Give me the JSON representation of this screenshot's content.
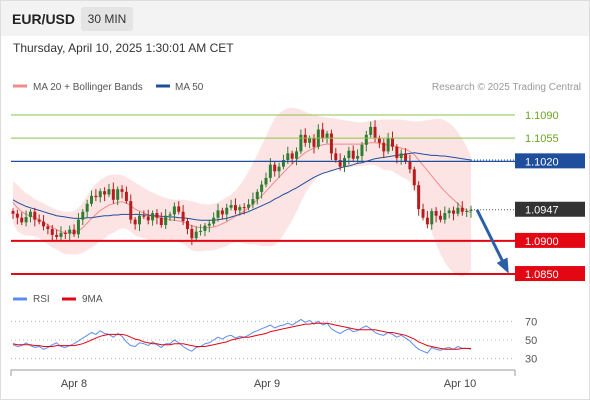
{
  "header": {
    "pair": "EUR/USD",
    "timeframe": "30 MIN",
    "timestamp": "Thursday, April 10, 2025 1:30:01 AM CET"
  },
  "legend": {
    "ma20": "MA 20 + Bollinger Bands",
    "ma50": "MA 50",
    "research": "Research © 2025 Trading Central",
    "rsi": "RSI",
    "ma9": "9MA"
  },
  "colors": {
    "ma20": "#f28b8b",
    "ma50": "#1f4e9c",
    "bb_fill": "#fde4e4",
    "up": "#2e7d32",
    "down": "#b71c1c",
    "resistance": "#8bc34a",
    "pivot": "#1f4e9c",
    "support": "#e30613",
    "last": "#333333",
    "rsi": "#5b8def",
    "rsi_ma": "#e30613",
    "arrow": "#2b5fa8"
  },
  "chart_data": [
    {
      "type": "candlestick",
      "ylim": [
        1.0838,
        1.1105
      ],
      "x_ticks": [
        "Apr 8",
        "Apr 9",
        "Apr 10"
      ],
      "levels": [
        {
          "value": 1.109,
          "label": "1.1090",
          "kind": "resistance"
        },
        {
          "value": 1.1055,
          "label": "1.1055",
          "kind": "resistance"
        },
        {
          "value": 1.102,
          "label": "1.1020",
          "kind": "pivot"
        },
        {
          "value": 1.0947,
          "label": "1.0947",
          "kind": "last"
        },
        {
          "value": 1.09,
          "label": "1.0900",
          "kind": "support"
        },
        {
          "value": 1.085,
          "label": "1.0850",
          "kind": "support"
        }
      ],
      "close": [
        1.0941,
        1.0935,
        1.0928,
        1.0936,
        1.0944,
        1.0932,
        1.0929,
        1.0922,
        1.0918,
        1.0909,
        1.0906,
        1.0912,
        1.0911,
        1.0917,
        1.091,
        1.0932,
        1.0944,
        1.0956,
        1.0968,
        1.0966,
        1.0975,
        1.097,
        1.0978,
        1.0962,
        1.0978,
        1.0974,
        1.096,
        1.0932,
        1.0925,
        1.0938,
        1.0937,
        1.0931,
        1.0942,
        1.0935,
        1.0924,
        1.0938,
        1.094,
        1.0952,
        1.0944,
        1.093,
        1.0918,
        1.0904,
        1.0914,
        1.0915,
        1.0923,
        1.0926,
        1.0935,
        1.0946,
        1.094,
        1.095,
        1.0954,
        1.0946,
        1.0951,
        1.095,
        1.0955,
        1.0963,
        1.0974,
        1.0985,
        1.0995,
        1.1015,
        1.1005,
        1.1012,
        1.1022,
        1.1032,
        1.1024,
        1.1035,
        1.106,
        1.1048,
        1.1055,
        1.1042,
        1.1068,
        1.1055,
        1.1062,
        1.1032,
        1.1022,
        1.1012,
        1.1025,
        1.1036,
        1.1024,
        1.1028,
        1.1045,
        1.106,
        1.1072,
        1.1055,
        1.1048,
        1.1035,
        1.1055,
        1.1042,
        1.1025,
        1.1032,
        1.102,
        1.1008,
        1.0984,
        1.0948,
        1.0935,
        1.0925,
        1.0945,
        1.0938,
        1.0932,
        1.0942,
        1.0946,
        1.0941,
        1.095,
        1.0944,
        1.0945,
        1.0947
      ],
      "ma20": [
        1.0958,
        1.095,
        1.0944,
        1.094,
        1.0938,
        1.0935,
        1.0932,
        1.0928,
        1.0924,
        1.092,
        1.0917,
        1.0914,
        1.0912,
        1.0912,
        1.0912,
        1.0915,
        1.092,
        1.0927,
        1.0934,
        1.094,
        1.0946,
        1.095,
        1.0954,
        1.0956,
        1.0958,
        1.0959,
        1.0957,
        1.0953,
        1.0948,
        1.0945,
        1.0942,
        1.0939,
        1.0937,
        1.0936,
        1.0934,
        1.0933,
        1.0932,
        1.0931,
        1.093,
        1.0929,
        1.0926,
        1.0923,
        1.0921,
        1.092,
        1.092,
        1.092,
        1.0921,
        1.0923,
        1.0926,
        1.0929,
        1.0933,
        1.0937,
        1.0941,
        1.0945,
        1.095,
        1.0956,
        1.0962,
        1.0968,
        1.0975,
        1.0982,
        1.0989,
        1.0996,
        1.1003,
        1.101,
        1.1016,
        1.1022,
        1.1028,
        1.1033,
        1.1037,
        1.104,
        1.1043,
        1.1045,
        1.1046,
        1.1046,
        1.1046,
        1.1046,
        1.1046,
        1.1046,
        1.1046,
        1.1046,
        1.1046,
        1.1047,
        1.1048,
        1.1048,
        1.1047,
        1.1045,
        1.1045,
        1.1044,
        1.1042,
        1.104,
        1.1038,
        1.1035,
        1.103,
        1.1022,
        1.1014,
        1.1006,
        1.0998,
        1.099,
        1.0982,
        1.0975,
        1.0968,
        1.0962,
        1.0956,
        1.095,
        1.0946,
        1.0942
      ],
      "bb_upper": [
        1.099,
        1.0985,
        1.0978,
        1.0972,
        1.0968,
        1.0963,
        1.096,
        1.0957,
        1.0953,
        1.095,
        1.0947,
        1.0945,
        1.0944,
        1.0944,
        1.0945,
        1.095,
        1.0958,
        1.0968,
        1.0978,
        1.0986,
        1.0992,
        1.0996,
        1.0999,
        1.1,
        1.1,
        1.0999,
        1.0996,
        1.0992,
        1.0988,
        1.0984,
        1.098,
        1.0976,
        1.0973,
        1.097,
        1.0967,
        1.0965,
        1.0963,
        1.0962,
        1.0962,
        1.0962,
        1.0961,
        1.096,
        1.0958,
        1.0956,
        1.0955,
        1.0955,
        1.0956,
        1.0958,
        1.0962,
        1.0966,
        1.097,
        1.0976,
        1.0984,
        1.0994,
        1.1005,
        1.1017,
        1.103,
        1.1044,
        1.1058,
        1.1072,
        1.1085,
        1.1092,
        1.1097,
        1.11,
        1.1101,
        1.11,
        1.1098,
        1.1095,
        1.1092,
        1.109,
        1.1088,
        1.1087,
        1.1086,
        1.1085,
        1.1084,
        1.1083,
        1.1082,
        1.1081,
        1.108,
        1.1079,
        1.1079,
        1.108,
        1.1081,
        1.1082,
        1.1083,
        1.1083,
        1.1083,
        1.1083,
        1.1083,
        1.1083,
        1.1082,
        1.1081,
        1.108,
        1.108,
        1.1081,
        1.1082,
        1.1083,
        1.1084,
        1.1084,
        1.1082,
        1.1078,
        1.1072,
        1.1064,
        1.1054,
        1.1042,
        1.1028
      ],
      "bb_lower": [
        1.0926,
        1.0915,
        1.091,
        1.0908,
        1.0908,
        1.0907,
        1.0904,
        1.0899,
        1.0895,
        1.089,
        1.0887,
        1.0883,
        1.088,
        1.088,
        1.0879,
        1.088,
        1.0882,
        1.0886,
        1.089,
        1.0894,
        1.09,
        1.0904,
        1.0909,
        1.0912,
        1.0916,
        1.0919,
        1.0918,
        1.0914,
        1.0908,
        1.0906,
        1.0904,
        1.0902,
        1.0901,
        1.0902,
        1.0901,
        1.0901,
        1.0901,
        1.09,
        1.0898,
        1.0896,
        1.0891,
        1.0886,
        1.0884,
        1.0884,
        1.0885,
        1.0885,
        1.0886,
        1.0888,
        1.089,
        1.0892,
        1.0896,
        1.0898,
        1.0898,
        1.0896,
        1.0895,
        1.0895,
        1.0894,
        1.0892,
        1.0892,
        1.0892,
        1.0893,
        1.09,
        1.0909,
        1.092,
        1.0931,
        1.0944,
        1.0958,
        1.0971,
        1.0982,
        1.099,
        1.0998,
        1.1003,
        1.1006,
        1.1007,
        1.1008,
        1.1009,
        1.101,
        1.1011,
        1.1012,
        1.1013,
        1.1013,
        1.1014,
        1.1015,
        1.1014,
        1.1011,
        1.1007,
        1.1007,
        1.1005,
        1.1001,
        1.0997,
        1.0994,
        1.0989,
        1.098,
        1.0964,
        1.0947,
        1.093,
        1.0913,
        1.0896,
        1.088,
        1.0868,
        1.0858,
        1.0852,
        1.0848,
        1.0846,
        1.085,
        1.0856
      ],
      "ma50": [
        1.0962,
        1.0958,
        1.0955,
        1.0952,
        1.095,
        1.0948,
        1.0946,
        1.0944,
        1.0942,
        1.094,
        1.0938,
        1.0937,
        1.0936,
        1.0935,
        1.0934,
        1.0934,
        1.0934,
        1.0935,
        1.0935,
        1.0936,
        1.0937,
        1.0938,
        1.0938,
        1.0939,
        1.0939,
        1.094,
        1.094,
        1.094,
        1.094,
        1.094,
        1.0939,
        1.0939,
        1.0938,
        1.0938,
        1.0937,
        1.0937,
        1.0936,
        1.0936,
        1.0935,
        1.0935,
        1.0934,
        1.0933,
        1.0932,
        1.0931,
        1.0931,
        1.0931,
        1.0931,
        1.0932,
        1.0933,
        1.0934,
        1.0936,
        1.0938,
        1.094,
        1.0942,
        1.0944,
        1.0947,
        1.095,
        1.0953,
        1.0956,
        1.0959,
        1.0963,
        1.0966,
        1.097,
        1.0973,
        1.0977,
        1.098,
        1.0984,
        1.0988,
        1.0992,
        1.0996,
        1.0999,
        1.1002,
        1.1004,
        1.1006,
        1.1008,
        1.101,
        1.1012,
        1.1013,
        1.1015,
        1.1017,
        1.1018,
        1.102,
        1.1022,
        1.1024,
        1.1025,
        1.1026,
        1.1027,
        1.1028,
        1.1029,
        1.103,
        1.1031,
        1.1032,
        1.1033,
        1.1032,
        1.1031,
        1.103,
        1.1029,
        1.1029,
        1.1028,
        1.1028,
        1.1027,
        1.1026,
        1.1025,
        1.1024,
        1.1023,
        1.1022
      ]
    },
    {
      "type": "line",
      "name": "RSI",
      "ylim": [
        20,
        80
      ],
      "y_ticks": [
        70,
        50,
        30
      ],
      "series": [
        {
          "name": "RSI",
          "values": [
            45,
            43,
            44,
            47,
            44,
            42,
            43,
            40,
            42,
            45,
            47,
            43,
            42,
            44,
            46,
            49,
            52,
            55,
            58,
            56,
            60,
            57,
            56,
            53,
            57,
            54,
            48,
            44,
            43,
            47,
            46,
            44,
            48,
            45,
            42,
            46,
            46,
            50,
            47,
            43,
            40,
            38,
            42,
            43,
            46,
            47,
            50,
            53,
            51,
            54,
            55,
            52,
            54,
            53,
            55,
            58,
            60,
            62,
            64,
            66,
            63,
            65,
            66,
            68,
            66,
            69,
            72,
            69,
            71,
            67,
            70,
            66,
            68,
            62,
            59,
            57,
            60,
            62,
            59,
            60,
            63,
            65,
            62,
            58,
            56,
            55,
            58,
            56,
            53,
            55,
            52,
            49,
            44,
            40,
            38,
            36,
            42,
            40,
            39,
            41,
            42,
            40,
            43,
            41,
            41,
            40
          ]
        },
        {
          "name": "9MA",
          "values": [
            46,
            45,
            45,
            45,
            45,
            44,
            44,
            43,
            43,
            43,
            44,
            44,
            44,
            44,
            44,
            45,
            46,
            48,
            50,
            52,
            54,
            55,
            56,
            56,
            56,
            56,
            55,
            53,
            51,
            50,
            48,
            47,
            46,
            46,
            45,
            45,
            45,
            46,
            46,
            46,
            45,
            44,
            43,
            43,
            43,
            44,
            45,
            46,
            47,
            48,
            50,
            51,
            52,
            53,
            53,
            54,
            55,
            56,
            57,
            59,
            60,
            61,
            62,
            63,
            64,
            65,
            66,
            67,
            67,
            68,
            68,
            68,
            68,
            67,
            66,
            65,
            64,
            63,
            62,
            61,
            61,
            61,
            61,
            61,
            60,
            59,
            58,
            58,
            57,
            56,
            55,
            53,
            51,
            48,
            46,
            44,
            43,
            42,
            41,
            40,
            40,
            40,
            40,
            41,
            41,
            41
          ]
        }
      ]
    }
  ]
}
